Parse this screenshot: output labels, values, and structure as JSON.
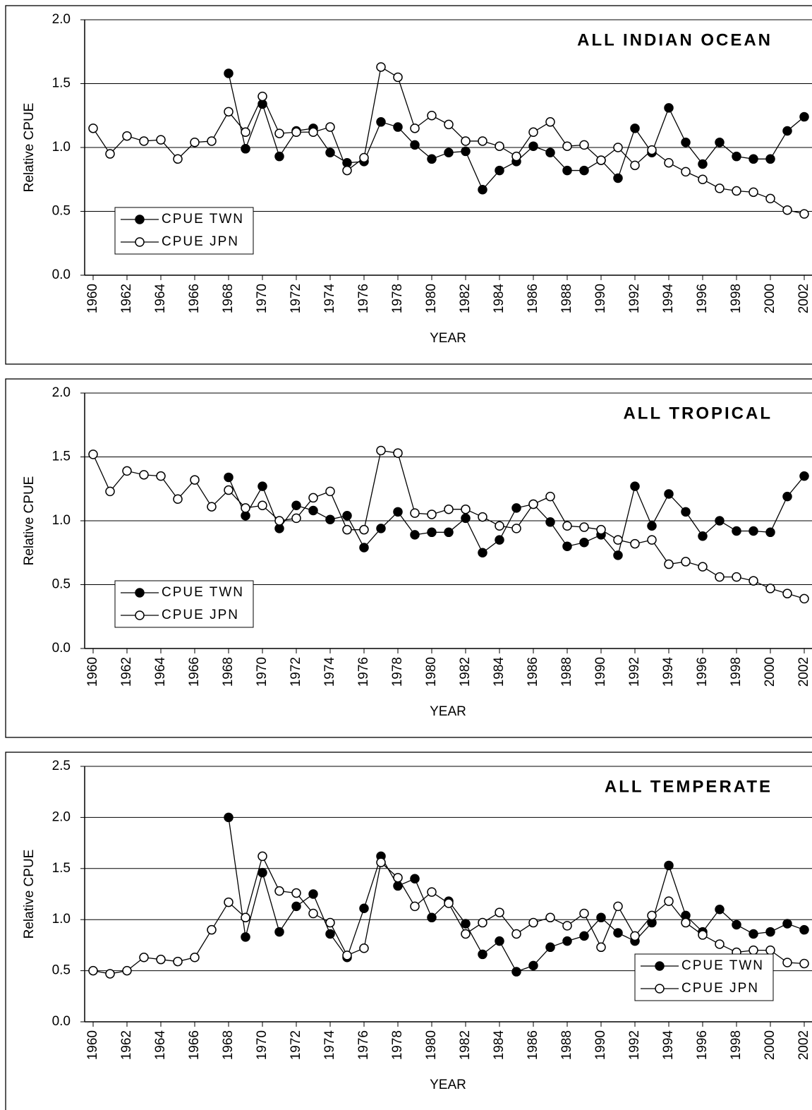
{
  "chart_data": [
    {
      "type": "line",
      "title": "ALL INDIAN OCEAN",
      "xlabel": "YEAR",
      "ylabel": "Relative CPUE",
      "x": [
        1960,
        1961,
        1962,
        1963,
        1964,
        1965,
        1966,
        1967,
        1968,
        1969,
        1970,
        1971,
        1972,
        1973,
        1974,
        1975,
        1976,
        1977,
        1978,
        1979,
        1980,
        1981,
        1982,
        1983,
        1984,
        1985,
        1986,
        1987,
        1988,
        1989,
        1990,
        1991,
        1992,
        1993,
        1994,
        1995,
        1996,
        1997,
        1998,
        1999,
        2000,
        2001,
        2002
      ],
      "series": [
        {
          "name": "CPUE TWN",
          "color": "#000000",
          "fill": "#000000",
          "values": [
            null,
            null,
            null,
            null,
            null,
            null,
            null,
            null,
            1.58,
            0.99,
            1.34,
            0.93,
            1.13,
            1.15,
            0.96,
            0.88,
            0.89,
            1.2,
            1.16,
            1.02,
            0.91,
            0.96,
            0.97,
            0.67,
            0.82,
            0.89,
            1.01,
            0.96,
            0.82,
            0.82,
            0.9,
            0.76,
            1.15,
            0.96,
            1.31,
            1.04,
            0.87,
            1.04,
            0.93,
            0.91,
            0.91,
            1.13,
            1.24
          ]
        },
        {
          "name": "CPUE JPN",
          "color": "#000000",
          "fill": "#ffffff",
          "values": [
            1.15,
            0.95,
            1.09,
            1.05,
            1.06,
            0.91,
            1.04,
            1.05,
            1.28,
            1.12,
            1.4,
            1.11,
            1.12,
            1.12,
            1.16,
            0.82,
            0.92,
            1.63,
            1.55,
            1.15,
            1.25,
            1.18,
            1.05,
            1.05,
            1.01,
            0.93,
            1.12,
            1.2,
            1.01,
            1.02,
            0.9,
            1.0,
            0.86,
            0.98,
            0.88,
            0.81,
            0.75,
            0.68,
            0.66,
            0.65,
            0.6,
            0.51,
            0.48
          ]
        }
      ],
      "xlim": [
        1959.5,
        2002.5
      ],
      "xticks": [
        1960,
        1962,
        1964,
        1966,
        1968,
        1970,
        1972,
        1974,
        1976,
        1978,
        1980,
        1982,
        1984,
        1986,
        1988,
        1990,
        1992,
        1994,
        1996,
        1998,
        2000,
        2002
      ],
      "ylim": [
        0,
        2
      ],
      "yticks": [
        {
          "value": 0,
          "label": "0.0"
        },
        {
          "value": 0.5,
          "label": "0.5"
        },
        {
          "value": 1,
          "label": "1.0"
        },
        {
          "value": 1.5,
          "label": "1.5"
        },
        {
          "value": 2,
          "label": "2.0"
        }
      ],
      "grid": true,
      "legend": "lower left"
    },
    {
      "type": "line",
      "title": "ALL TROPICAL",
      "xlabel": "YEAR",
      "ylabel": "Relative CPUE",
      "x": [
        1960,
        1961,
        1962,
        1963,
        1964,
        1965,
        1966,
        1967,
        1968,
        1969,
        1970,
        1971,
        1972,
        1973,
        1974,
        1975,
        1976,
        1977,
        1978,
        1979,
        1980,
        1981,
        1982,
        1983,
        1984,
        1985,
        1986,
        1987,
        1988,
        1989,
        1990,
        1991,
        1992,
        1993,
        1994,
        1995,
        1996,
        1997,
        1998,
        1999,
        2000,
        2001,
        2002
      ],
      "series": [
        {
          "name": "CPUE TWN",
          "color": "#000000",
          "fill": "#000000",
          "values": [
            null,
            null,
            null,
            null,
            null,
            null,
            null,
            null,
            1.34,
            1.04,
            1.27,
            0.94,
            1.12,
            1.08,
            1.01,
            1.04,
            0.79,
            0.94,
            1.07,
            0.89,
            0.91,
            0.91,
            1.02,
            0.75,
            0.85,
            1.1,
            1.13,
            0.99,
            0.8,
            0.83,
            0.89,
            0.73,
            1.27,
            0.96,
            1.21,
            1.07,
            0.88,
            1.0,
            0.92,
            0.92,
            0.91,
            1.19,
            1.35
          ]
        },
        {
          "name": "CPUE JPN",
          "color": "#000000",
          "fill": "#ffffff",
          "values": [
            1.52,
            1.23,
            1.39,
            1.36,
            1.35,
            1.17,
            1.32,
            1.11,
            1.24,
            1.1,
            1.12,
            1.0,
            1.02,
            1.18,
            1.23,
            0.93,
            0.93,
            1.55,
            1.53,
            1.06,
            1.05,
            1.09,
            1.09,
            1.03,
            0.96,
            0.94,
            1.13,
            1.19,
            0.96,
            0.95,
            0.93,
            0.85,
            0.82,
            0.85,
            0.66,
            0.68,
            0.64,
            0.56,
            0.56,
            0.53,
            0.47,
            0.43,
            0.39
          ]
        }
      ],
      "xlim": [
        1959.5,
        2002.5
      ],
      "xticks": [
        1960,
        1962,
        1964,
        1966,
        1968,
        1970,
        1972,
        1974,
        1976,
        1978,
        1980,
        1982,
        1984,
        1986,
        1988,
        1990,
        1992,
        1994,
        1996,
        1998,
        2000,
        2002
      ],
      "ylim": [
        0,
        2
      ],
      "yticks": [
        {
          "value": 0,
          "label": "0.0"
        },
        {
          "value": 0.5,
          "label": "0.5"
        },
        {
          "value": 1,
          "label": "1.0"
        },
        {
          "value": 1.5,
          "label": "1.5"
        },
        {
          "value": 2,
          "label": "2.0"
        }
      ],
      "grid": true,
      "legend": "lower left"
    },
    {
      "type": "line",
      "title": "ALL TEMPERATE",
      "xlabel": "YEAR",
      "ylabel": "Relative CPUE",
      "x": [
        1960,
        1961,
        1962,
        1963,
        1964,
        1965,
        1966,
        1967,
        1968,
        1969,
        1970,
        1971,
        1972,
        1973,
        1974,
        1975,
        1976,
        1977,
        1978,
        1979,
        1980,
        1981,
        1982,
        1983,
        1984,
        1985,
        1986,
        1987,
        1988,
        1989,
        1990,
        1991,
        1992,
        1993,
        1994,
        1995,
        1996,
        1997,
        1998,
        1999,
        2000,
        2001,
        2002
      ],
      "series": [
        {
          "name": "CPUE TWN",
          "color": "#000000",
          "fill": "#000000",
          "values": [
            null,
            null,
            null,
            null,
            null,
            null,
            null,
            null,
            2.0,
            0.83,
            1.46,
            0.88,
            1.13,
            1.25,
            0.86,
            0.63,
            1.11,
            1.62,
            1.33,
            1.4,
            1.02,
            1.18,
            0.96,
            0.66,
            0.79,
            0.49,
            0.55,
            0.73,
            0.79,
            0.84,
            1.02,
            0.87,
            0.79,
            0.97,
            1.53,
            1.04,
            0.88,
            1.1,
            0.95,
            0.86,
            0.88,
            0.96,
            0.9
          ]
        },
        {
          "name": "CPUE JPN",
          "color": "#000000",
          "fill": "#ffffff",
          "values": [
            0.5,
            0.47,
            0.5,
            0.63,
            0.61,
            0.59,
            0.63,
            0.9,
            1.17,
            1.02,
            1.62,
            1.28,
            1.26,
            1.06,
            0.97,
            0.65,
            0.72,
            1.56,
            1.41,
            1.13,
            1.27,
            1.16,
            0.86,
            0.97,
            1.07,
            0.86,
            0.97,
            1.02,
            0.94,
            1.06,
            0.73,
            1.13,
            0.84,
            1.04,
            1.18,
            0.97,
            0.85,
            0.76,
            0.68,
            0.7,
            0.7,
            0.58,
            0.57
          ]
        }
      ],
      "xlim": [
        1959.5,
        2002.5
      ],
      "xticks": [
        1960,
        1962,
        1964,
        1966,
        1968,
        1970,
        1972,
        1974,
        1976,
        1978,
        1980,
        1982,
        1984,
        1986,
        1988,
        1990,
        1992,
        1994,
        1996,
        1998,
        2000,
        2002
      ],
      "ylim": [
        0,
        2.5
      ],
      "yticks": [
        {
          "value": 0,
          "label": "0.0"
        },
        {
          "value": 0.5,
          "label": "0.5"
        },
        {
          "value": 1,
          "label": "1.0"
        },
        {
          "value": 1.5,
          "label": "1.5"
        },
        {
          "value": 2,
          "label": "2.0"
        },
        {
          "value": 2.5,
          "label": "2.5"
        }
      ],
      "grid": true,
      "legend": "lower right"
    }
  ]
}
